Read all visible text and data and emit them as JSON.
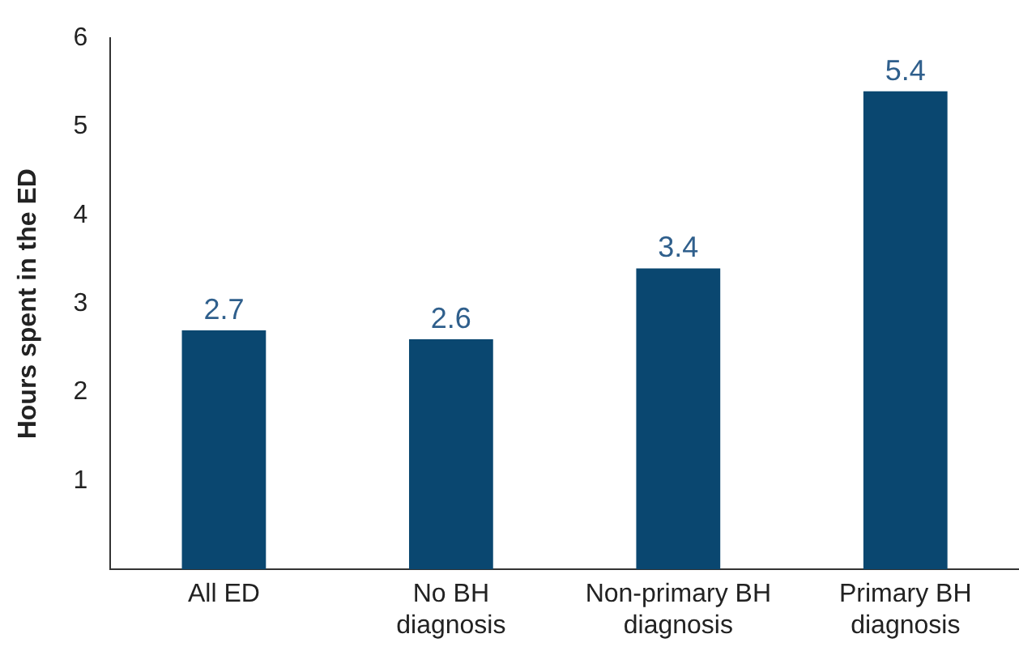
{
  "chart_data": {
    "type": "bar",
    "ylabel": "Hours spent in the ED",
    "categories": [
      "All ED",
      "No BH diagnosis",
      "Non-primary BH diagnosis",
      "Primary BH diagnosis"
    ],
    "values": [
      2.7,
      2.6,
      3.4,
      5.4
    ],
    "color": "#0a4770",
    "ylim": [
      0,
      6
    ],
    "yticks": [
      1,
      2,
      3,
      4,
      5,
      6
    ],
    "grid": false,
    "legend": false,
    "data_labels": true
  }
}
